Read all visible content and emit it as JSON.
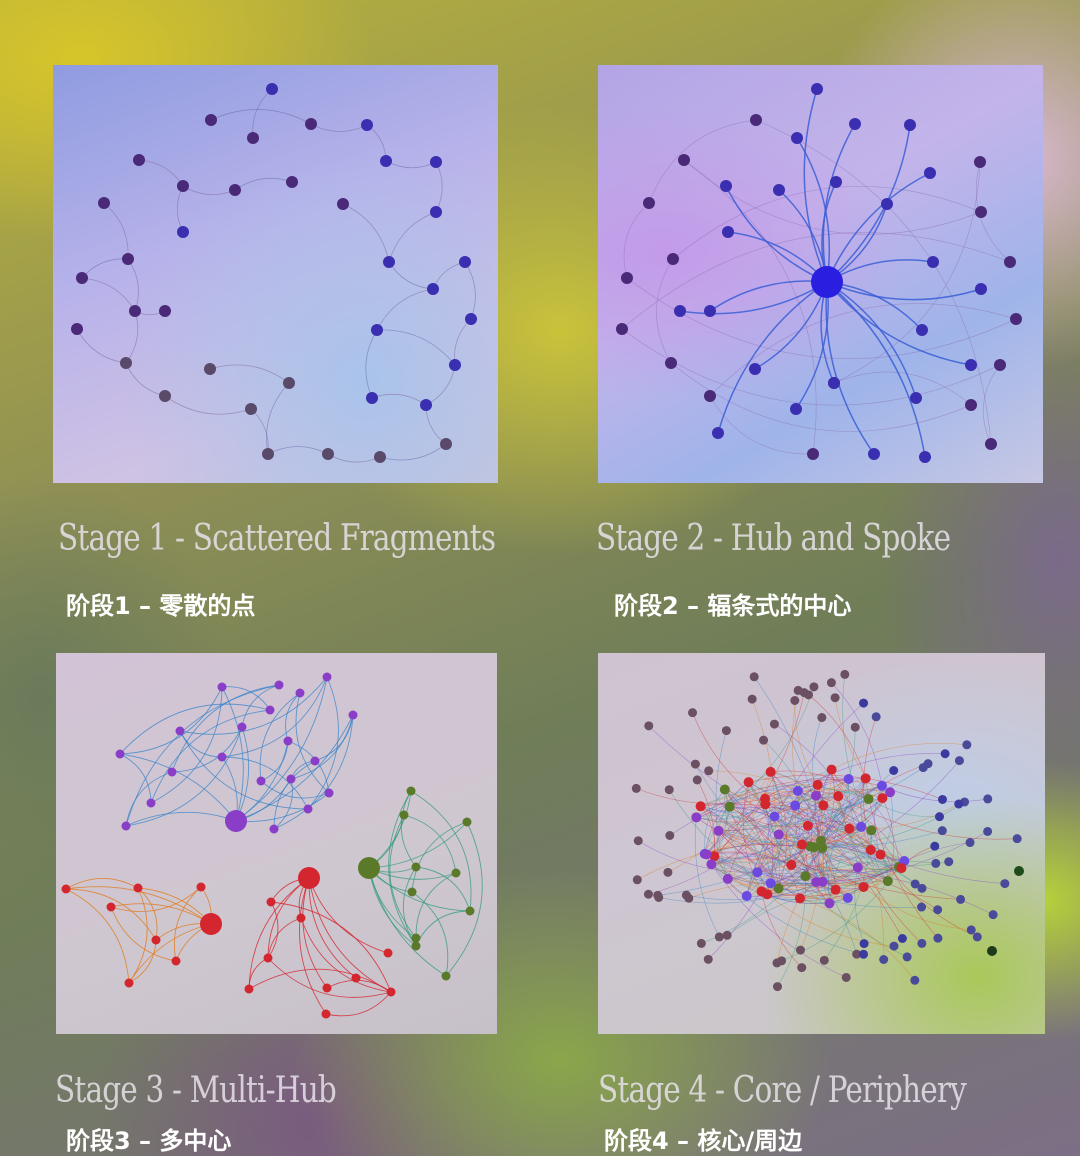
{
  "stages": [
    {
      "title": "Stage 1 - Scattered Fragments",
      "subtitle": "阶段1 – 零散的点"
    },
    {
      "title": "Stage 2 - Hub and Spoke",
      "subtitle": "阶段2 – 辐条式的中心"
    },
    {
      "title": "Stage 3 - Multi-Hub",
      "subtitle": "阶段3 – 多中心"
    },
    {
      "title": "Stage 4 - Core / Periphery",
      "subtitle": "阶段4 – 核心/周边"
    }
  ],
  "colors": {
    "node_dark_blue": "#3a2fb0",
    "node_dark_purple": "#4a2a78",
    "node_muted": "#5a4a6a",
    "edge_blue": "#3a5ed6",
    "hub_blue": "#2a1ee0",
    "cluster_purple": "#8a3ec8",
    "cluster_blue_edge": "#2f7fc8",
    "cluster_red": "#d4262e",
    "cluster_orange": "#e07a1c",
    "cluster_green": "#5a7a2a",
    "cluster_teal_edge": "#2f9a7a",
    "periphery_brown": "#6a5060"
  }
}
